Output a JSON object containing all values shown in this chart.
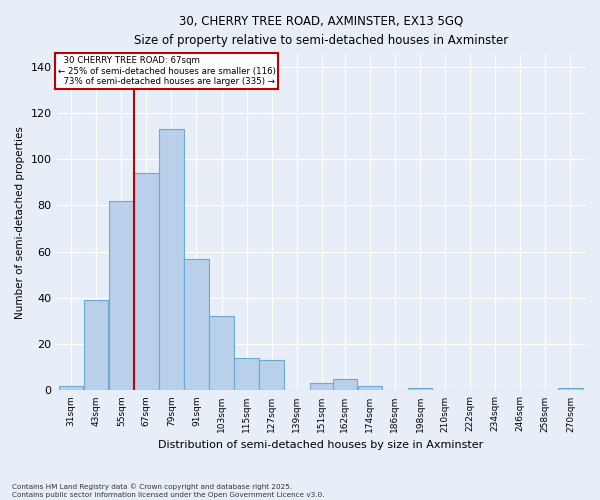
{
  "title1": "30, CHERRY TREE ROAD, AXMINSTER, EX13 5GQ",
  "title2": "Size of property relative to semi-detached houses in Axminster",
  "xlabel": "Distribution of semi-detached houses by size in Axminster",
  "ylabel": "Number of semi-detached properties",
  "bins": [
    31,
    43,
    55,
    67,
    79,
    91,
    103,
    115,
    127,
    139,
    151,
    162,
    174,
    186,
    198,
    210,
    222,
    234,
    246,
    258,
    270
  ],
  "heights": [
    2,
    39,
    82,
    94,
    113,
    57,
    32,
    14,
    13,
    0,
    3,
    5,
    2,
    0,
    1,
    0,
    0,
    0,
    0,
    0,
    1
  ],
  "bar_color": "#b8d0ea",
  "bar_edge_color": "#6aaad4",
  "property_size": 67,
  "property_label": "30 CHERRY TREE ROAD: 67sqm",
  "smaller_text": "← 25% of semi-detached houses are smaller (116)",
  "larger_text": "73% of semi-detached houses are larger (335) →",
  "red_line_color": "#c00000",
  "ylim": [
    0,
    145
  ],
  "yticks": [
    0,
    20,
    40,
    60,
    80,
    100,
    120,
    140
  ],
  "background_color": "#e8eef8",
  "grid_color": "#ffffff",
  "footer": "Contains HM Land Registry data © Crown copyright and database right 2025.\nContains public sector information licensed under the Open Government Licence v3.0."
}
